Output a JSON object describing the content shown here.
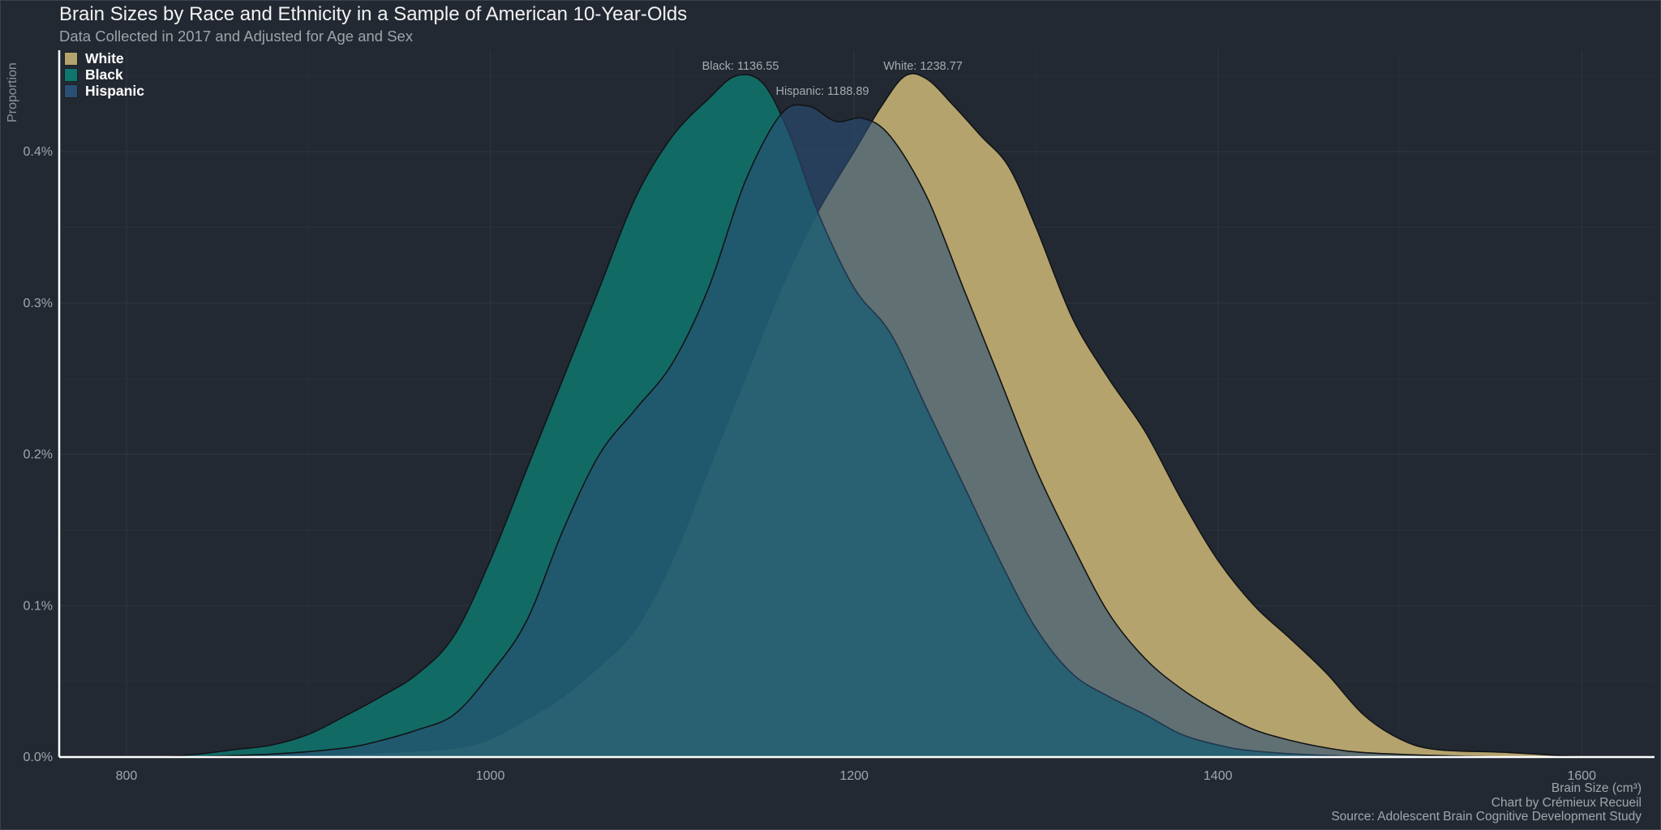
{
  "title": "Brain Sizes by Race and Ethnicity in a Sample of American 10-Year-Olds",
  "subtitle": "Data Collected in 2017 and Adjusted for Age and Sex",
  "footer": {
    "xlabel": "Brain Size (cm³)",
    "credit": "Chart by Crémieux Recueil",
    "source": "Source: Adolescent Brain Cognitive Development Study"
  },
  "chart_data": {
    "type": "area",
    "chart_subtype": "density",
    "xlabel": "Brain Size (cm³)",
    "ylabel": "Proportion",
    "xlim": [
      763,
      1640
    ],
    "ylim": [
      0,
      0.00467
    ],
    "x_ticks": [
      800,
      1000,
      1200,
      1400,
      1600
    ],
    "x_tick_labels": [
      "800",
      "1000",
      "1200",
      "1400",
      "1600"
    ],
    "y_ticks": [
      0,
      0.001,
      0.002,
      0.003,
      0.004
    ],
    "y_tick_labels": [
      "0.0%",
      "0.1%",
      "0.2%",
      "0.3%",
      "0.4%"
    ],
    "grid": true,
    "legend_position": "top-left",
    "series": [
      {
        "name": "White",
        "color": "#b5a36e",
        "annotation": "White: 1238.77",
        "mean": 1238.77,
        "points": [
          [
            820,
            0
          ],
          [
            880,
            1e-05
          ],
          [
            940,
            3e-05
          ],
          [
            980,
            6e-05
          ],
          [
            1000,
            0.00012
          ],
          [
            1020,
            0.00025
          ],
          [
            1040,
            0.0004
          ],
          [
            1060,
            0.0006
          ],
          [
            1080,
            0.00085
          ],
          [
            1100,
            0.0013
          ],
          [
            1120,
            0.0019
          ],
          [
            1140,
            0.0025
          ],
          [
            1160,
            0.0031
          ],
          [
            1180,
            0.0036
          ],
          [
            1200,
            0.004
          ],
          [
            1215,
            0.0043
          ],
          [
            1228,
            0.0045
          ],
          [
            1240,
            0.00448
          ],
          [
            1255,
            0.0043
          ],
          [
            1270,
            0.0041
          ],
          [
            1285,
            0.0039
          ],
          [
            1300,
            0.0035
          ],
          [
            1320,
            0.0029
          ],
          [
            1340,
            0.0025
          ],
          [
            1360,
            0.00215
          ],
          [
            1380,
            0.0017
          ],
          [
            1400,
            0.0013
          ],
          [
            1420,
            0.001
          ],
          [
            1440,
            0.00078
          ],
          [
            1460,
            0.00055
          ],
          [
            1480,
            0.00028
          ],
          [
            1500,
            0.00012
          ],
          [
            1520,
            5e-05
          ],
          [
            1560,
            3e-05
          ],
          [
            1600,
            0
          ]
        ]
      },
      {
        "name": "Black",
        "color": "#0f766f",
        "annotation": "Black: 1136.55",
        "mean": 1136.55,
        "points": [
          [
            820,
            0
          ],
          [
            840,
            2e-05
          ],
          [
            860,
            5e-05
          ],
          [
            880,
            8e-05
          ],
          [
            900,
            0.00015
          ],
          [
            920,
            0.00027
          ],
          [
            940,
            0.0004
          ],
          [
            960,
            0.00055
          ],
          [
            980,
            0.0008
          ],
          [
            1000,
            0.0013
          ],
          [
            1020,
            0.0019
          ],
          [
            1040,
            0.0025
          ],
          [
            1060,
            0.0031
          ],
          [
            1080,
            0.0037
          ],
          [
            1100,
            0.0041
          ],
          [
            1120,
            0.00435
          ],
          [
            1135,
            0.0045
          ],
          [
            1150,
            0.00445
          ],
          [
            1165,
            0.0041
          ],
          [
            1180,
            0.0036
          ],
          [
            1200,
            0.0031
          ],
          [
            1220,
            0.0028
          ],
          [
            1240,
            0.0023
          ],
          [
            1260,
            0.0018
          ],
          [
            1280,
            0.0013
          ],
          [
            1300,
            0.00085
          ],
          [
            1320,
            0.00055
          ],
          [
            1340,
            0.0004
          ],
          [
            1360,
            0.00028
          ],
          [
            1380,
            0.00015
          ],
          [
            1400,
            8e-05
          ],
          [
            1420,
            4e-05
          ],
          [
            1460,
            1e-05
          ],
          [
            1500,
            0
          ]
        ]
      },
      {
        "name": "Hispanic",
        "color": "#2a4f75",
        "annotation": "Hispanic: 1188.89",
        "mean": 1188.89,
        "points": [
          [
            830,
            0
          ],
          [
            880,
            2e-05
          ],
          [
            920,
            6e-05
          ],
          [
            940,
            0.00011
          ],
          [
            960,
            0.00018
          ],
          [
            980,
            0.00028
          ],
          [
            1000,
            0.00055
          ],
          [
            1020,
            0.0009
          ],
          [
            1040,
            0.0015
          ],
          [
            1060,
            0.002
          ],
          [
            1080,
            0.0023
          ],
          [
            1100,
            0.0026
          ],
          [
            1120,
            0.0031
          ],
          [
            1140,
            0.0038
          ],
          [
            1160,
            0.00425
          ],
          [
            1175,
            0.0043
          ],
          [
            1190,
            0.0042
          ],
          [
            1205,
            0.00422
          ],
          [
            1220,
            0.0041
          ],
          [
            1240,
            0.0037
          ],
          [
            1260,
            0.0031
          ],
          [
            1280,
            0.0025
          ],
          [
            1300,
            0.0019
          ],
          [
            1320,
            0.0014
          ],
          [
            1340,
            0.00095
          ],
          [
            1360,
            0.00065
          ],
          [
            1380,
            0.00045
          ],
          [
            1400,
            0.0003
          ],
          [
            1420,
            0.00018
          ],
          [
            1440,
            0.00011
          ],
          [
            1460,
            6e-05
          ],
          [
            1480,
            3e-05
          ],
          [
            1520,
            1e-05
          ],
          [
            1560,
            0
          ]
        ]
      }
    ]
  }
}
